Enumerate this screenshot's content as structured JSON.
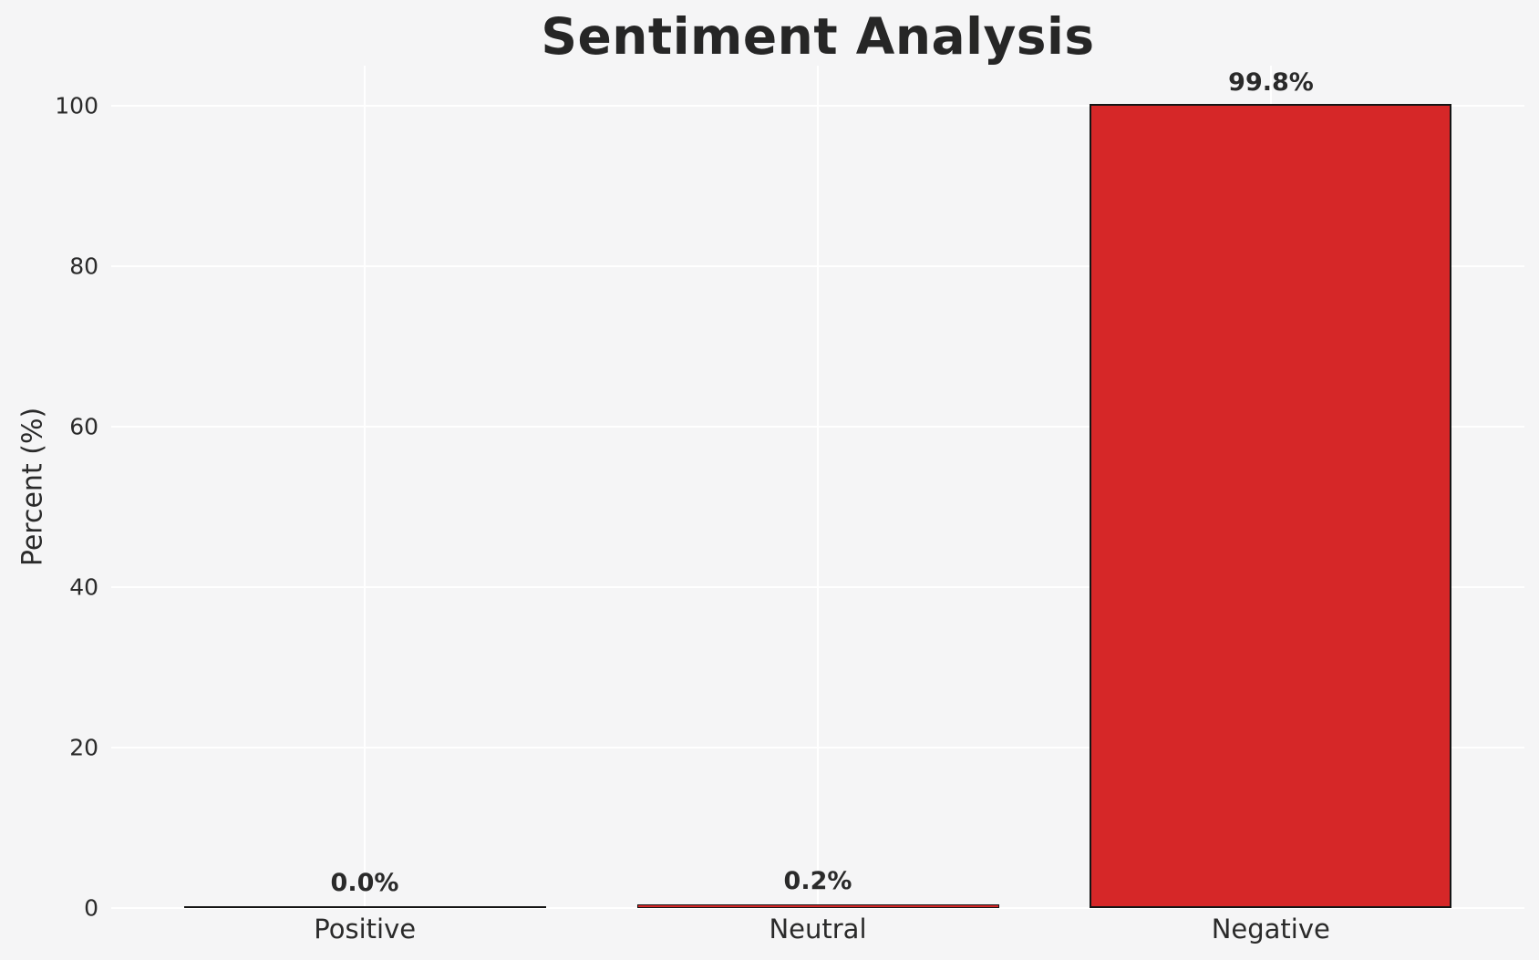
{
  "chart_data": {
    "type": "bar",
    "title": "Sentiment Analysis",
    "xlabel": "",
    "ylabel": "Percent (%)",
    "categories": [
      "Positive",
      "Neutral",
      "Negative"
    ],
    "values": [
      0.0,
      0.2,
      99.8
    ],
    "value_labels": [
      "0.0%",
      "0.2%",
      "99.8%"
    ],
    "yticks": [
      0,
      20,
      40,
      60,
      80,
      100
    ],
    "ylim": [
      0,
      105
    ],
    "grid": true,
    "legend_position": "none",
    "colors": {
      "background": "#f5f5f6",
      "gridline": "#ffffff",
      "bar_fill": "#d62728",
      "bar_edge": "#151515",
      "text": "#2a2a2a",
      "title_text": "#262626"
    }
  }
}
